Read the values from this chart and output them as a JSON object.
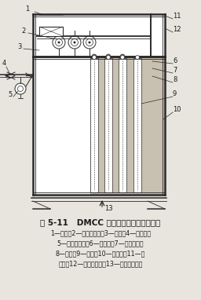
{
  "title": "图 5-11   DMCC 型仓顶脉冲除尘器的结构",
  "caption_lines": [
    "1—盖板；2—电磁脉冲阀；3—气包；4—截止阀；",
    "5—油水分离器；6—喷吹管；7—文丘里管；",
    "8—底座；9—滤袋；10—下箱体；11—上",
    "箱体；12—洁净空气室；13—含尘气体进口"
  ],
  "bg_color": "#e8e4de",
  "line_color": "#2a2a2a",
  "text_color": "#1a1a1a",
  "fig_width": 2.56,
  "fig_height": 3.82,
  "dpi": 100
}
